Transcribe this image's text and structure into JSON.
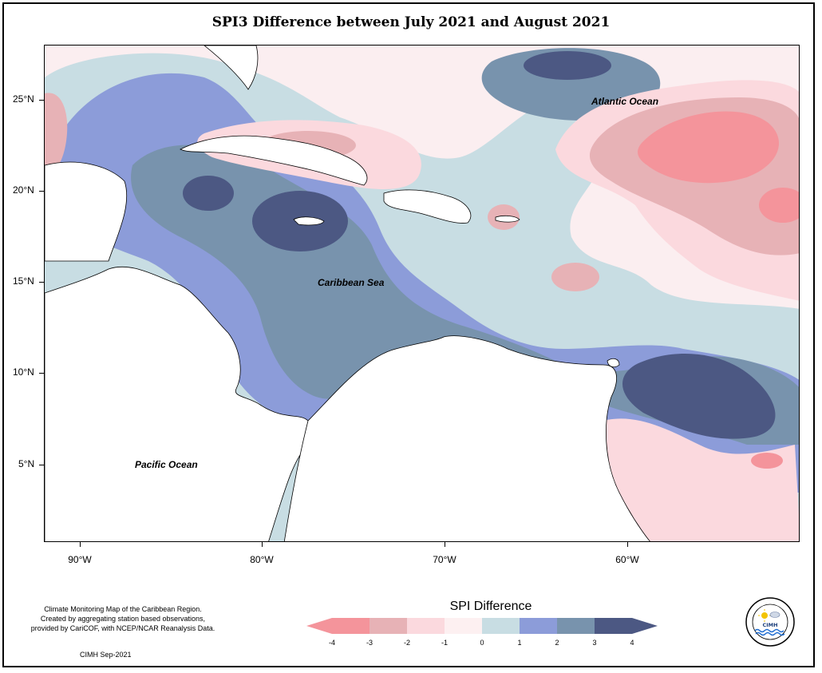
{
  "title": "SPI3 Difference between July 2021 and August 2021",
  "map": {
    "region": "Caribbean",
    "lat_range": [
      0.7,
      28.0
    ],
    "lon_range": [
      -92,
      -51
    ],
    "lat_labels": [
      "25°N",
      "20°N",
      "15°N",
      "10°N",
      "5°N"
    ],
    "lon_labels": [
      "90°W",
      "80°W",
      "70°W",
      "60°W"
    ],
    "labels": {
      "atlantic": "Atlantic Ocean",
      "caribbean": "Caribbean Sea",
      "pacific": "Pacific Ocean"
    }
  },
  "legend": {
    "title": "SPI Difference",
    "ticks": [
      "-4",
      "-3",
      "-2",
      "-1",
      "0",
      "1",
      "2",
      "3",
      "4"
    ],
    "colors": [
      "#f4949b",
      "#e7b2b6",
      "#fbd9de",
      "#fdf0f1",
      "#c8dde3",
      "#8c9cd9",
      "#7893ad",
      "#4c5883"
    ]
  },
  "footnote": {
    "lines": [
      "Climate Monitoring Map of the Caribbean Region.",
      "Created by aggregating station based observations,",
      "provided by CariCOF, with NCEP/NCAR Reanalysis Data."
    ],
    "credit": "CIMH Sep-2021"
  },
  "logo": {
    "text": "CIMH",
    "ring_text": "Caribbean Institute for Meteorology and Hydrology"
  }
}
